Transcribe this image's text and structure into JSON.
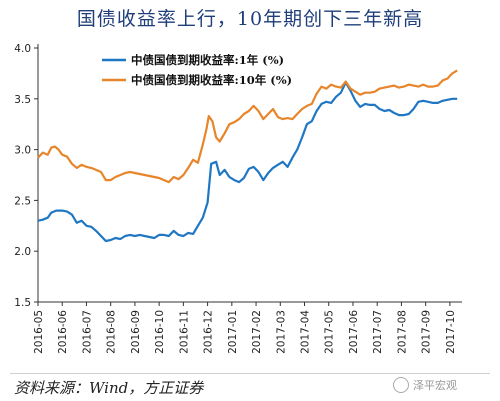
{
  "page": {
    "title": "国债收益率上行，10年期创下三年新高",
    "source": "资料来源：Wind，方正证券",
    "watermark": "泽平宏观"
  },
  "chart_data": {
    "type": "line",
    "title": "国债收益率上行，10年期创下三年新高",
    "xlabel": "",
    "ylabel": "",
    "ylim": [
      1.5,
      4.0
    ],
    "yticks": [
      1.5,
      2.0,
      2.5,
      3.0,
      3.5,
      4.0
    ],
    "ytick_labels": [
      "1.5",
      "2.0",
      "2.5",
      "3.0",
      "3.5",
      "4.0"
    ],
    "x_tick_labels": [
      "2016-05",
      "2016-06",
      "2016-07",
      "2016-08",
      "2016-09",
      "2016-10",
      "2016-11",
      "2016-12",
      "2017-01",
      "2017-02",
      "2017-03",
      "2017-04",
      "2017-05",
      "2017-06",
      "2017-07",
      "2017-08",
      "2017-09",
      "2017-10"
    ],
    "legend_position": "top-left",
    "grid": false,
    "series": [
      {
        "name": "中债国债到期收益率:1年 (%)",
        "color": "#1f77c4",
        "points": [
          [
            0.0,
            2.3
          ],
          [
            0.2,
            2.31
          ],
          [
            0.4,
            2.33
          ],
          [
            0.55,
            2.38
          ],
          [
            0.75,
            2.4
          ],
          [
            1.0,
            2.4
          ],
          [
            1.2,
            2.39
          ],
          [
            1.4,
            2.36
          ],
          [
            1.6,
            2.28
          ],
          [
            1.8,
            2.3
          ],
          [
            2.0,
            2.25
          ],
          [
            2.2,
            2.24
          ],
          [
            2.4,
            2.2
          ],
          [
            2.6,
            2.15
          ],
          [
            2.8,
            2.1
          ],
          [
            3.0,
            2.11
          ],
          [
            3.2,
            2.13
          ],
          [
            3.4,
            2.12
          ],
          [
            3.6,
            2.15
          ],
          [
            3.8,
            2.16
          ],
          [
            4.0,
            2.15
          ],
          [
            4.2,
            2.16
          ],
          [
            4.4,
            2.15
          ],
          [
            4.6,
            2.14
          ],
          [
            4.8,
            2.13
          ],
          [
            5.0,
            2.16
          ],
          [
            5.2,
            2.16
          ],
          [
            5.4,
            2.15
          ],
          [
            5.6,
            2.2
          ],
          [
            5.8,
            2.16
          ],
          [
            6.0,
            2.15
          ],
          [
            6.2,
            2.18
          ],
          [
            6.4,
            2.17
          ],
          [
            6.6,
            2.25
          ],
          [
            6.8,
            2.33
          ],
          [
            7.0,
            2.48
          ],
          [
            7.15,
            2.86
          ],
          [
            7.35,
            2.88
          ],
          [
            7.5,
            2.75
          ],
          [
            7.7,
            2.8
          ],
          [
            7.9,
            2.73
          ],
          [
            8.1,
            2.7
          ],
          [
            8.3,
            2.68
          ],
          [
            8.5,
            2.72
          ],
          [
            8.7,
            2.81
          ],
          [
            8.9,
            2.83
          ],
          [
            9.1,
            2.78
          ],
          [
            9.3,
            2.7
          ],
          [
            9.5,
            2.77
          ],
          [
            9.7,
            2.82
          ],
          [
            9.9,
            2.85
          ],
          [
            10.1,
            2.88
          ],
          [
            10.3,
            2.83
          ],
          [
            10.5,
            2.92
          ],
          [
            10.7,
            3.0
          ],
          [
            10.9,
            3.12
          ],
          [
            11.1,
            3.25
          ],
          [
            11.3,
            3.28
          ],
          [
            11.5,
            3.38
          ],
          [
            11.7,
            3.45
          ],
          [
            11.9,
            3.47
          ],
          [
            12.1,
            3.46
          ],
          [
            12.3,
            3.52
          ],
          [
            12.5,
            3.56
          ],
          [
            12.7,
            3.66
          ],
          [
            12.9,
            3.58
          ],
          [
            13.1,
            3.48
          ],
          [
            13.3,
            3.42
          ],
          [
            13.5,
            3.45
          ],
          [
            13.7,
            3.44
          ],
          [
            13.9,
            3.44
          ],
          [
            14.1,
            3.4
          ],
          [
            14.3,
            3.38
          ],
          [
            14.5,
            3.39
          ],
          [
            14.7,
            3.36
          ],
          [
            14.9,
            3.34
          ],
          [
            15.1,
            3.34
          ],
          [
            15.3,
            3.35
          ],
          [
            15.5,
            3.4
          ],
          [
            15.7,
            3.47
          ],
          [
            15.9,
            3.48
          ],
          [
            16.1,
            3.47
          ],
          [
            16.3,
            3.46
          ],
          [
            16.5,
            3.46
          ],
          [
            16.7,
            3.48
          ],
          [
            16.9,
            3.49
          ],
          [
            17.1,
            3.5
          ],
          [
            17.3,
            3.5
          ]
        ]
      },
      {
        "name": "中债国债到期收益率:10年 (%)",
        "color": "#e8852a",
        "points": [
          [
            0.0,
            2.92
          ],
          [
            0.2,
            2.97
          ],
          [
            0.4,
            2.95
          ],
          [
            0.55,
            3.02
          ],
          [
            0.7,
            3.03
          ],
          [
            0.85,
            3.0
          ],
          [
            1.0,
            2.95
          ],
          [
            1.2,
            2.93
          ],
          [
            1.4,
            2.86
          ],
          [
            1.6,
            2.82
          ],
          [
            1.8,
            2.85
          ],
          [
            2.0,
            2.83
          ],
          [
            2.2,
            2.82
          ],
          [
            2.4,
            2.8
          ],
          [
            2.6,
            2.78
          ],
          [
            2.8,
            2.7
          ],
          [
            3.0,
            2.7
          ],
          [
            3.2,
            2.73
          ],
          [
            3.4,
            2.75
          ],
          [
            3.6,
            2.77
          ],
          [
            3.8,
            2.78
          ],
          [
            4.0,
            2.77
          ],
          [
            4.2,
            2.76
          ],
          [
            4.4,
            2.75
          ],
          [
            4.6,
            2.74
          ],
          [
            4.8,
            2.73
          ],
          [
            5.0,
            2.72
          ],
          [
            5.2,
            2.7
          ],
          [
            5.4,
            2.68
          ],
          [
            5.6,
            2.73
          ],
          [
            5.8,
            2.71
          ],
          [
            6.0,
            2.75
          ],
          [
            6.2,
            2.82
          ],
          [
            6.4,
            2.9
          ],
          [
            6.6,
            2.87
          ],
          [
            6.8,
            3.05
          ],
          [
            6.95,
            3.2
          ],
          [
            7.05,
            3.33
          ],
          [
            7.2,
            3.28
          ],
          [
            7.35,
            3.12
          ],
          [
            7.5,
            3.08
          ],
          [
            7.7,
            3.16
          ],
          [
            7.9,
            3.25
          ],
          [
            8.1,
            3.27
          ],
          [
            8.3,
            3.3
          ],
          [
            8.5,
            3.35
          ],
          [
            8.7,
            3.38
          ],
          [
            8.9,
            3.43
          ],
          [
            9.1,
            3.38
          ],
          [
            9.3,
            3.3
          ],
          [
            9.5,
            3.35
          ],
          [
            9.7,
            3.4
          ],
          [
            9.9,
            3.32
          ],
          [
            10.1,
            3.3
          ],
          [
            10.3,
            3.31
          ],
          [
            10.5,
            3.3
          ],
          [
            10.7,
            3.35
          ],
          [
            10.9,
            3.4
          ],
          [
            11.1,
            3.43
          ],
          [
            11.3,
            3.45
          ],
          [
            11.5,
            3.55
          ],
          [
            11.7,
            3.62
          ],
          [
            11.9,
            3.6
          ],
          [
            12.1,
            3.64
          ],
          [
            12.3,
            3.62
          ],
          [
            12.5,
            3.61
          ],
          [
            12.7,
            3.67
          ],
          [
            12.9,
            3.6
          ],
          [
            13.1,
            3.57
          ],
          [
            13.3,
            3.54
          ],
          [
            13.5,
            3.56
          ],
          [
            13.7,
            3.56
          ],
          [
            13.9,
            3.57
          ],
          [
            14.1,
            3.6
          ],
          [
            14.3,
            3.61
          ],
          [
            14.5,
            3.62
          ],
          [
            14.7,
            3.63
          ],
          [
            14.9,
            3.61
          ],
          [
            15.1,
            3.62
          ],
          [
            15.3,
            3.64
          ],
          [
            15.5,
            3.63
          ],
          [
            15.7,
            3.62
          ],
          [
            15.9,
            3.64
          ],
          [
            16.1,
            3.62
          ],
          [
            16.3,
            3.62
          ],
          [
            16.5,
            3.63
          ],
          [
            16.7,
            3.68
          ],
          [
            16.9,
            3.7
          ],
          [
            17.1,
            3.75
          ],
          [
            17.3,
            3.78
          ]
        ]
      }
    ]
  }
}
